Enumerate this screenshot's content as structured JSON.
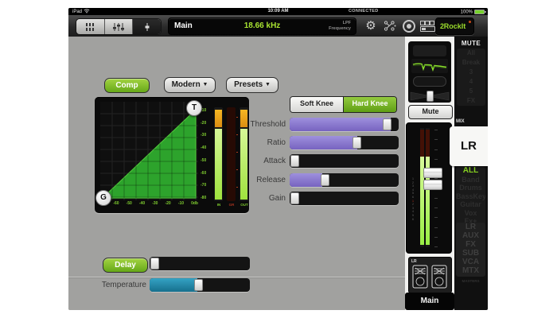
{
  "status_bar": {
    "device": "iPad",
    "time": "10:09 AM",
    "connection": "CONNECTED",
    "battery": "100%"
  },
  "toolbar": {
    "channel_display": {
      "name": "Main",
      "value": "18.66 kHz",
      "param_line1": "LPF",
      "param_line2": "Frequency"
    },
    "show_button": {
      "number": "2",
      "name": "RockIt"
    }
  },
  "comp_section": {
    "enable_button": "Comp",
    "model_dropdown": "Modern",
    "presets_dropdown": "Presets",
    "dropdown_caret": "▼",
    "knee": {
      "soft": "Soft Knee",
      "hard": "Hard Knee",
      "selected": "Hard Knee"
    },
    "graph": {
      "threshold_handle": "T",
      "gain_handle": "G",
      "x_ticks": [
        "-70",
        "-60",
        "-50",
        "-40",
        "-30",
        "-20",
        "-10",
        "0db"
      ],
      "y_ticks": [
        "-10",
        "-20",
        "-30",
        "-40",
        "-50",
        "-60",
        "-70",
        "-80"
      ]
    },
    "meters": {
      "labels": [
        "IN",
        "GR",
        "OUT"
      ]
    },
    "sliders": [
      {
        "label": "Threshold",
        "pct": 93
      },
      {
        "label": "Ratio",
        "pct": 62
      },
      {
        "label": "Attack",
        "pct": 0
      },
      {
        "label": "Release",
        "pct": 30
      },
      {
        "label": "Gain",
        "pct": 0
      }
    ]
  },
  "delay_section": {
    "enable_button": "Delay",
    "delay_pct": 0,
    "temperature_label": "Temperature",
    "temperature_pct": 48
  },
  "channel_strip": {
    "mute_button": "Mute",
    "monitor_label": "LR",
    "main_label": "Main",
    "fader_scale_digits": [
      "1",
      "2",
      "3",
      "4",
      "5",
      "6",
      "1",
      "2",
      "3",
      "4",
      "5",
      "6"
    ]
  },
  "right_rail": {
    "mute_header": "MUTE",
    "mute_groups": [
      "All",
      "Break",
      "3",
      "4",
      "5",
      "FX"
    ],
    "mix_label": "MIX",
    "selected_mix": "LR",
    "view_groups": [
      "ALL",
      "Band",
      "Drums",
      "BassKey",
      "Guitar",
      "Vox",
      "Fx+"
    ],
    "masters_groups": [
      "LR",
      "AUX",
      "FX",
      "SUB",
      "VCA",
      "MTX"
    ],
    "masters_label": "MASTERS"
  },
  "colors": {
    "accent_green": "#76b82a",
    "lcd_green": "#a9e431",
    "slider_purple": "#8674cb",
    "temperature_teal": "#1f86a6",
    "meter_green": "#9fe23e",
    "meter_orange": "#f0a71f"
  }
}
